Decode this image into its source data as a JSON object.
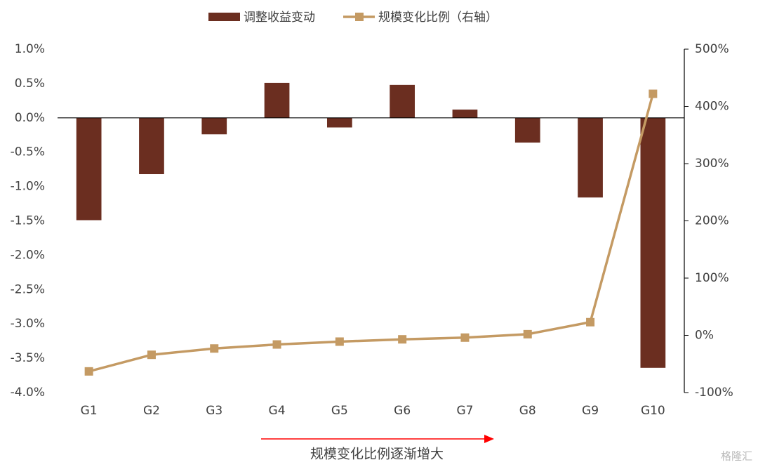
{
  "chart_data": {
    "type": "bar_line",
    "categories": [
      "G1",
      "G2",
      "G3",
      "G4",
      "G5",
      "G6",
      "G7",
      "G8",
      "G9",
      "G10"
    ],
    "series": [
      {
        "name": "调整收益变动",
        "type": "bar",
        "color": "#6b2e20",
        "values": [
          -1.49,
          -0.82,
          -0.24,
          0.51,
          -0.14,
          0.48,
          0.12,
          -0.36,
          -1.16,
          -3.64
        ]
      },
      {
        "name": "规模变化比例（右轴）",
        "type": "line",
        "axis": "y2",
        "color": "#c49a63",
        "values": [
          -63,
          -34,
          -23,
          -16,
          -11,
          -7,
          -4,
          2,
          23,
          422
        ]
      }
    ],
    "ylim": [
      -4.0,
      1.0
    ],
    "yticks": [
      {
        "value": 1.0,
        "label": "1.0%"
      },
      {
        "value": 0.5,
        "label": "0.5%"
      },
      {
        "value": 0.0,
        "label": "0.0%"
      },
      {
        "value": -0.5,
        "label": "-0.5%"
      },
      {
        "value": -1.0,
        "label": "-1.0%"
      },
      {
        "value": -1.5,
        "label": "-1.5%"
      },
      {
        "value": -2.0,
        "label": "-2.0%"
      },
      {
        "value": -2.5,
        "label": "-2.5%"
      },
      {
        "value": -3.0,
        "label": "-3.0%"
      },
      {
        "value": -3.5,
        "label": "-3.5%"
      },
      {
        "value": -4.0,
        "label": "-4.0%"
      }
    ],
    "y2lim": [
      -100,
      500
    ],
    "y2ticks": [
      {
        "value": 500,
        "label": "500%"
      },
      {
        "value": 400,
        "label": "400%"
      },
      {
        "value": 300,
        "label": "300%"
      },
      {
        "value": 200,
        "label": "200%"
      },
      {
        "value": 100,
        "label": "100%"
      },
      {
        "value": 0,
        "label": "0%"
      },
      {
        "value": -100,
        "label": "-100%"
      }
    ],
    "annotation": "规模变化比例逐渐增大",
    "watermark": "格隆汇",
    "legend": "top"
  }
}
